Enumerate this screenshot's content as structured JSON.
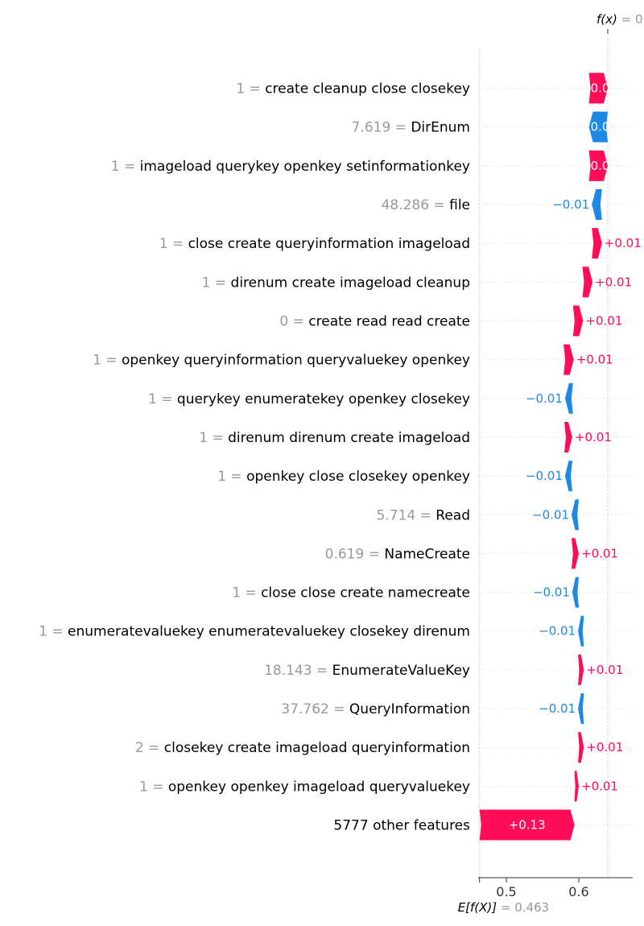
{
  "chart_data": {
    "type": "waterfall",
    "title": "",
    "fx_label": "f(x)",
    "fx_value": "0.",
    "fx_numeric": 0.64,
    "base_label": "E[f(X)]",
    "base_value": "0.463",
    "base_numeric": 0.463,
    "xlim": [
      0.46,
      0.67
    ],
    "xticks": [
      {
        "value": 0.5,
        "label": "0.5"
      },
      {
        "value": 0.6,
        "label": "0.6"
      }
    ],
    "colors": {
      "positive": "#ff0d57",
      "negative": "#1e88e5"
    },
    "features": [
      {
        "value_text": "1",
        "name": "create cleanup close closekey",
        "start": 0.614,
        "end": 0.64,
        "label": "0.0",
        "label_inside": true
      },
      {
        "value_text": "7.619",
        "name": "DirEnum",
        "start": 0.64,
        "end": 0.614,
        "label": "0.0",
        "label_inside": true
      },
      {
        "value_text": "1",
        "name": "imageload querykey openkey setinformationkey",
        "start": 0.614,
        "end": 0.64,
        "label": "0.0",
        "label_inside": true
      },
      {
        "value_text": "48.286",
        "name": "file",
        "start": 0.632,
        "end": 0.618,
        "label": "−0.01",
        "label_inside": false
      },
      {
        "value_text": "1",
        "name": "close create queryinformation imageload",
        "start": 0.618,
        "end": 0.632,
        "label": "+0.01",
        "label_inside": false
      },
      {
        "value_text": "1",
        "name": "direnum create imageload cleanup",
        "start": 0.605,
        "end": 0.619,
        "label": "+0.01",
        "label_inside": false
      },
      {
        "value_text": "0",
        "name": "create read read create",
        "start": 0.592,
        "end": 0.606,
        "label": "+0.01",
        "label_inside": false
      },
      {
        "value_text": "1",
        "name": "openkey queryinformation queryvaluekey openkey",
        "start": 0.579,
        "end": 0.593,
        "label": "+0.01",
        "label_inside": false
      },
      {
        "value_text": "1",
        "name": "querykey enumeratekey openkey closekey",
        "start": 0.592,
        "end": 0.581,
        "label": "−0.01",
        "label_inside": false
      },
      {
        "value_text": "1",
        "name": "direnum direnum create imageload",
        "start": 0.58,
        "end": 0.591,
        "label": "+0.01",
        "label_inside": false
      },
      {
        "value_text": "1",
        "name": "openkey close closekey openkey",
        "start": 0.591,
        "end": 0.581,
        "label": "−0.01",
        "label_inside": false
      },
      {
        "value_text": "5.714",
        "name": "Read",
        "start": 0.6,
        "end": 0.59,
        "label": "−0.01",
        "label_inside": false
      },
      {
        "value_text": "0.619",
        "name": "NameCreate",
        "start": 0.59,
        "end": 0.6,
        "label": "+0.01",
        "label_inside": false
      },
      {
        "value_text": "1",
        "name": "close close create namecreate",
        "start": 0.6,
        "end": 0.591,
        "label": "−0.01",
        "label_inside": false
      },
      {
        "value_text": "1",
        "name": "enumeratevaluekey enumeratevaluekey closekey direnum",
        "start": 0.607,
        "end": 0.599,
        "label": "−0.01",
        "label_inside": false
      },
      {
        "value_text": "18.143",
        "name": "EnumerateValueKey",
        "start": 0.599,
        "end": 0.607,
        "label": "+0.01",
        "label_inside": false
      },
      {
        "value_text": "37.762",
        "name": "QueryInformation",
        "start": 0.607,
        "end": 0.599,
        "label": "−0.01",
        "label_inside": false
      },
      {
        "value_text": "2",
        "name": "closekey create imageload queryinformation",
        "start": 0.599,
        "end": 0.607,
        "label": "+0.01",
        "label_inside": false
      },
      {
        "value_text": "1",
        "name": "openkey openkey imageload queryvaluekey",
        "start": 0.594,
        "end": 0.6,
        "label": "+0.01",
        "label_inside": false
      },
      {
        "value_text": "",
        "name": "5777 other features",
        "start": 0.463,
        "end": 0.594,
        "label": "+0.13",
        "label_inside": true
      }
    ]
  }
}
